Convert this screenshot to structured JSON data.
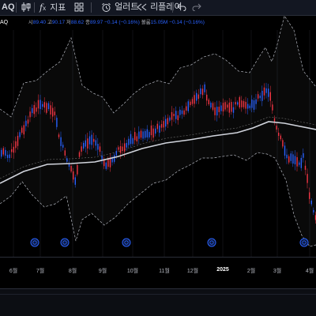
{
  "toolbar": {
    "symbol_suffix": "AQ",
    "indicators_label": "지표",
    "alert_label": "얼러트",
    "replay_label": "리플레이"
  },
  "legend": {
    "open_label": "시",
    "open_value": "89.40",
    "high_label": "고",
    "high_value": "90.17",
    "low_label": "저",
    "low_value": "88.62",
    "close_label": "종",
    "close_value": "89.97",
    "change_value": "−0.14 (−0.16%)",
    "bb_label": "볼룸",
    "bb_value": "15.05M",
    "bb_change": "−0.14 (−0.16%)"
  },
  "xaxis": {
    "ticks": [
      "6월",
      "7월",
      "8월",
      "9월",
      "10월",
      "11월",
      "12월",
      "2025",
      "2월",
      "3월",
      "4월"
    ]
  },
  "colors": {
    "background": "#000000",
    "up": "#2962ff",
    "down": "#f23645",
    "ma": "#d1d4dc",
    "band": "#b2b5be",
    "event_marker": "#2962ff"
  },
  "icons": {
    "bar_style": "candle-icon",
    "indicators": "fx-icon",
    "layout": "grid-icon",
    "alert": "alarm-icon",
    "replay": "rewind-icon",
    "undo": "undo-icon",
    "redo": "redo-icon"
  },
  "chart_data": {
    "type": "candlestick",
    "indicators": [
      "moving-average",
      "bollinger-bands"
    ],
    "event_markers_near": [
      "6월",
      "8월",
      "10월",
      "1월",
      "4월"
    ],
    "notes_on_values": "price scale not visible in screenshot"
  }
}
